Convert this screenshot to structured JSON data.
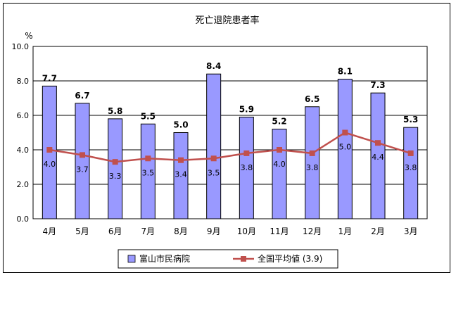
{
  "chart_data": {
    "type": "bar",
    "title": "死亡退院患者率",
    "ylabel": "%",
    "xlabel": "",
    "categories": [
      "4月",
      "5月",
      "6月",
      "7月",
      "8月",
      "9月",
      "10月",
      "11月",
      "12月",
      "1月",
      "2月",
      "3月"
    ],
    "ylim": [
      0,
      10
    ],
    "yticks": [
      "0.0",
      "2.0",
      "4.0",
      "6.0",
      "8.0",
      "10.0"
    ],
    "grid": true,
    "legend_position": "bottom",
    "series": [
      {
        "name": "富山市民病院",
        "type": "bar",
        "color": "#9999ff",
        "values": [
          7.7,
          6.7,
          5.8,
          5.5,
          5.0,
          8.4,
          5.9,
          5.2,
          6.5,
          8.1,
          7.3,
          5.3
        ],
        "labels": [
          "7.7",
          "6.7",
          "5.8",
          "5.5",
          "5.0",
          "8.4",
          "5.9",
          "5.2",
          "6.5",
          "8.1",
          "7.3",
          "5.3"
        ]
      },
      {
        "name": "全国平均値 (3.9)",
        "type": "line",
        "color": "#c0504d",
        "values": [
          4.0,
          3.7,
          3.3,
          3.5,
          3.4,
          3.5,
          3.8,
          4.0,
          3.8,
          5.0,
          4.4,
          3.8
        ],
        "labels": [
          "4.0",
          "3.7",
          "3.3",
          "3.5",
          "3.4",
          "3.5",
          "3.8",
          "4.0",
          "3.8",
          "5.0",
          "4.4",
          "3.8"
        ]
      }
    ]
  }
}
